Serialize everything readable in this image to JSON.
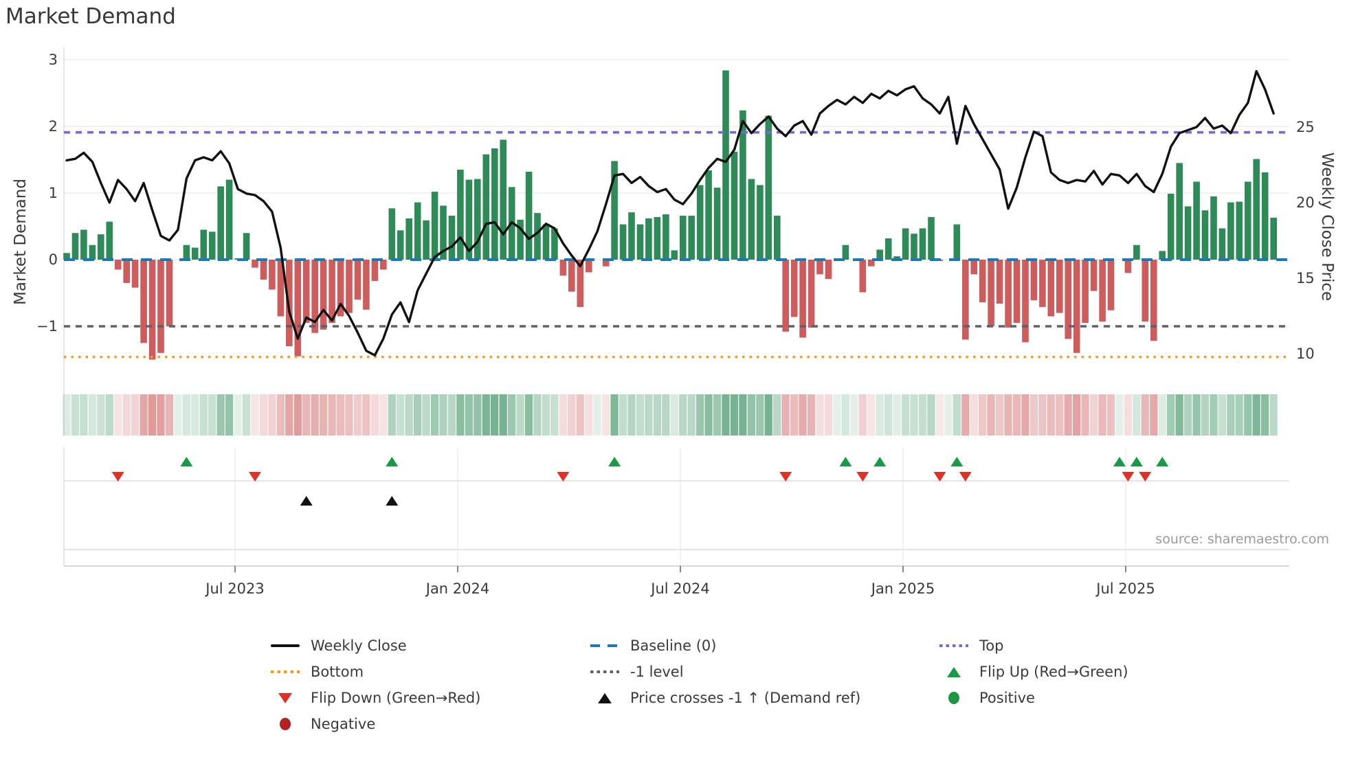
{
  "title": "Market Demand",
  "source": "source: sharemaestro.com",
  "axes": {
    "left_label": "Market Demand",
    "right_label": "Weekly Close Price",
    "left_ticks": [
      [
        "3",
        3
      ],
      [
        "2",
        2
      ],
      [
        "1",
        1
      ],
      [
        "0",
        0
      ],
      [
        "−1",
        -1
      ]
    ],
    "right_ticks": [
      [
        "25",
        25
      ],
      [
        "20",
        20
      ],
      [
        "15",
        15
      ],
      [
        "10",
        10
      ]
    ],
    "x_ticks": [
      "Jul 2023",
      "Jan 2024",
      "Jul 2024",
      "Jan 2025",
      "Jul 2025"
    ]
  },
  "legend": [
    {
      "label": "Weekly Close",
      "swatch": "line-solid",
      "color": "#111111"
    },
    {
      "label": "Bottom",
      "swatch": "line-dotted",
      "color": "#f79b1e"
    },
    {
      "label": "Flip Down (Green→Red)",
      "swatch": "tri-down",
      "color": "#e03127"
    },
    {
      "label": "Negative",
      "swatch": "circle",
      "color": "#b22222"
    },
    {
      "label": "Baseline (0)",
      "swatch": "line-dashed",
      "color": "#1f77b4"
    },
    {
      "label": "-1 level",
      "swatch": "line-dotted",
      "color": "#5d626c"
    },
    {
      "label": "Price crosses -1 ↑ (Demand ref)",
      "swatch": "tri-up",
      "color": "#111111"
    },
    {
      "label": "Top",
      "swatch": "line-dotted",
      "color": "#7468d4"
    },
    {
      "label": "Flip Up (Red→Green)",
      "swatch": "tri-up",
      "color": "#189a46"
    },
    {
      "label": "Positive",
      "swatch": "circle",
      "color": "#1e9642"
    }
  ],
  "colors": {
    "bar_green": "#2e8b57",
    "bar_red": "#cd5c5c",
    "close_line": "#111111",
    "baseline": "#1f77b4",
    "top": "#7468d4",
    "bottom": "#f79b1e",
    "minus_one": "#5d626c",
    "grid": "#ebebf2",
    "spine": "#d6d6de",
    "panel_line": "#dcdce4",
    "axis_line": "#c9c9cf",
    "flip_up": "#189a46",
    "flip_down": "#e03127",
    "cross": "#111111",
    "text": "#3a3a3a"
  },
  "chart_data": {
    "type": "bar+line",
    "title": "Market Demand",
    "x_start_week": "2023-02-13",
    "x_tick_labels": [
      "Jul 2023",
      "Jan 2024",
      "Jul 2024",
      "Jan 2025",
      "Jul 2025"
    ],
    "demand_ylim": [
      -2.7,
      3.2
    ],
    "price_axis_ticks": [
      10,
      15,
      20,
      25
    ],
    "levels": {
      "top": 1.91,
      "baseline": 0,
      "minus_one": -1,
      "bottom": -1.46
    },
    "demand": [
      0.1,
      0.4,
      0.45,
      0.22,
      0.38,
      0.57,
      -0.15,
      -0.35,
      -0.42,
      -1.25,
      -1.5,
      -1.4,
      -1.0,
      0.0,
      0.22,
      0.18,
      0.45,
      0.42,
      1.1,
      1.2,
      0.02,
      0.4,
      -0.12,
      -0.3,
      -0.45,
      -0.85,
      -1.3,
      -1.45,
      -0.95,
      -1.1,
      -1.05,
      -0.95,
      -0.85,
      -0.8,
      -0.6,
      -0.75,
      -0.32,
      -0.15,
      0.77,
      0.44,
      0.62,
      0.86,
      0.59,
      1.02,
      0.81,
      0.66,
      1.35,
      1.2,
      1.21,
      1.58,
      1.67,
      1.8,
      1.09,
      0.6,
      1.32,
      0.7,
      0.53,
      0.47,
      -0.24,
      -0.48,
      -0.71,
      -0.19,
      0.0,
      -0.1,
      1.48,
      0.53,
      0.71,
      0.53,
      0.62,
      0.64,
      0.68,
      0.14,
      0.66,
      0.66,
      1.12,
      1.34,
      1.08,
      2.84,
      1.62,
      2.24,
      1.21,
      1.12,
      2.16,
      0.66,
      -1.08,
      -0.86,
      -1.17,
      -1.02,
      -0.22,
      -0.29,
      0.0,
      0.22,
      0.0,
      -0.49,
      -0.1,
      0.15,
      0.32,
      0.05,
      0.47,
      0.39,
      0.47,
      0.64,
      -0.02,
      0.0,
      0.53,
      -1.2,
      -0.22,
      -0.64,
      -1.0,
      -0.66,
      -1.02,
      -0.95,
      -1.24,
      -0.61,
      -0.71,
      -0.85,
      -0.8,
      -1.19,
      -1.4,
      -0.95,
      -0.47,
      -0.93,
      -0.76,
      0.0,
      -0.2,
      0.22,
      -0.93,
      -1.22,
      0.13,
      0.99,
      1.45,
      0.8,
      1.17,
      0.74,
      0.95,
      0.47,
      0.86,
      0.87,
      1.17,
      1.51,
      1.31,
      0.63
    ],
    "close": [
      22.8,
      22.9,
      23.3,
      22.7,
      21.3,
      20.0,
      21.5,
      20.9,
      20.1,
      21.3,
      19.5,
      17.8,
      17.5,
      18.2,
      21.6,
      22.8,
      23.0,
      22.8,
      23.4,
      22.6,
      20.9,
      20.6,
      20.5,
      20.1,
      19.4,
      17.0,
      12.8,
      11.0,
      12.4,
      12.1,
      12.9,
      12.2,
      13.3,
      12.5,
      11.4,
      10.2,
      9.9,
      11.0,
      12.6,
      13.4,
      12.1,
      14.2,
      15.3,
      16.4,
      16.8,
      17.1,
      17.7,
      16.8,
      17.4,
      18.6,
      18.7,
      17.9,
      18.7,
      18.3,
      17.6,
      18.0,
      18.6,
      18.3,
      17.3,
      16.5,
      15.8,
      16.9,
      18.1,
      19.9,
      21.8,
      21.9,
      21.3,
      21.7,
      21.1,
      20.7,
      20.9,
      20.2,
      19.9,
      20.6,
      21.5,
      22.3,
      22.9,
      22.7,
      23.5,
      25.4,
      24.6,
      25.2,
      25.7,
      24.9,
      24.4,
      25.1,
      25.4,
      24.5,
      25.9,
      26.4,
      26.8,
      26.5,
      27.0,
      26.6,
      27.2,
      26.9,
      27.4,
      27.1,
      27.5,
      27.7,
      26.9,
      26.5,
      25.9,
      27.0,
      23.9,
      26.4,
      25.2,
      24.2,
      23.2,
      22.2,
      19.6,
      21.0,
      23.0,
      24.7,
      24.4,
      22.0,
      21.5,
      21.3,
      21.5,
      21.4,
      22.1,
      21.2,
      21.9,
      21.8,
      21.3,
      21.9,
      21.1,
      20.7,
      21.9,
      23.7,
      24.6,
      24.8,
      25.0,
      25.6,
      24.9,
      25.1,
      24.6,
      25.8,
      26.6,
      28.7,
      27.5,
      25.9
    ],
    "flip_up_weeks": [
      14,
      38,
      64,
      91,
      95,
      104,
      123,
      125,
      128
    ],
    "flip_down_weeks": [
      6,
      22,
      58,
      84,
      93,
      102,
      105,
      124,
      126
    ],
    "cross_weeks": [
      28,
      38
    ],
    "legend_position": "bottom",
    "grid": true
  }
}
